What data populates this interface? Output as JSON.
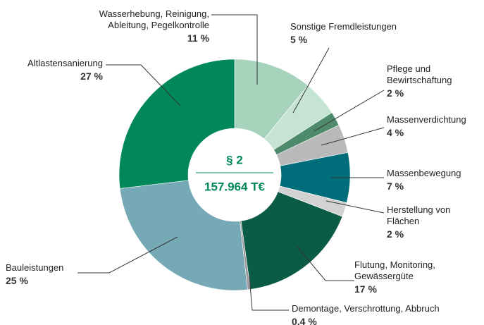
{
  "chart_data": {
    "type": "donut",
    "center_title": "§ 2",
    "center_value": "157.964 T€",
    "categories": [
      "Wasserhebung, Reinigung,\nAbleitung, Pegelkontrolle",
      "Sonstige Fremdleistungen",
      "Pflege und\nBewirtschaftung",
      "Massenverdichtung",
      "Massenbewegung",
      "Herstellung von\nFlächen",
      "Flutung, Monitoring,\nGewässergüte",
      "Demontage, Verschrottung, Abbruch",
      "Bauleistungen",
      "Altlastensanierung"
    ],
    "values": [
      11,
      5,
      2,
      4,
      7,
      2,
      17,
      0.4,
      25,
      27
    ],
    "value_labels": [
      "11 %",
      "5 %",
      "2 %",
      "4 %",
      "7 %",
      "2 %",
      "17 %",
      "0,4 %",
      "25 %",
      "27 %"
    ],
    "colors": [
      "#a7d3bd",
      "#c6e4d4",
      "#4e8a6c",
      "#b9b9b9",
      "#006e7a",
      "#d2d2d2",
      "#0b5c46",
      "#9a9a9a",
      "#75a9b5",
      "#00885b"
    ]
  }
}
